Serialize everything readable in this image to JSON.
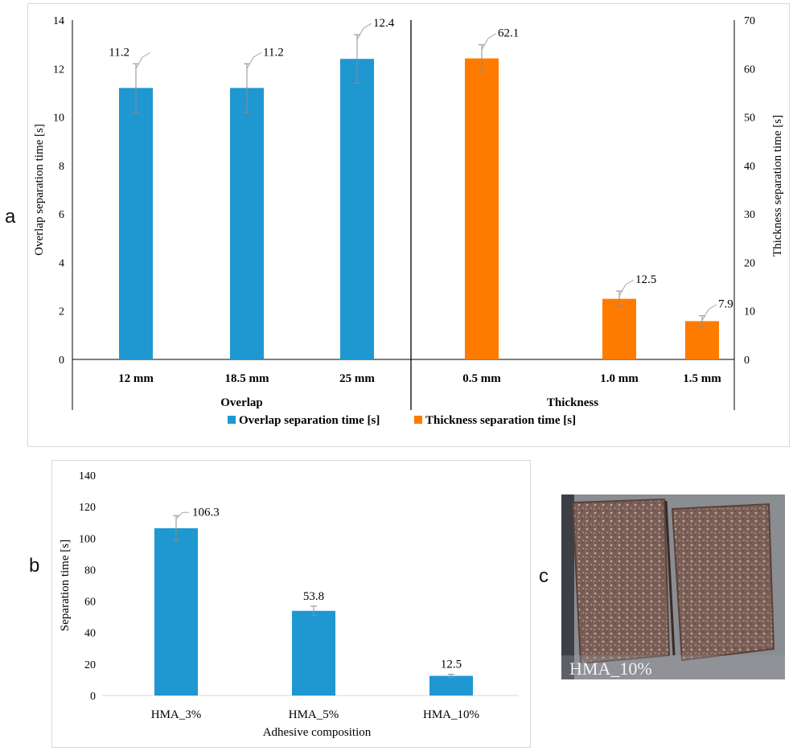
{
  "panel_labels": {
    "a": "a",
    "b": "b",
    "c": "c"
  },
  "colors": {
    "overlap": "#1f97d1",
    "thickness": "#ff7b00",
    "axis": "#000000",
    "error": "#8c8c8c"
  },
  "chart_data": [
    {
      "type": "bar",
      "panel": "a",
      "categories": [
        "12 mm",
        "18.5 mm",
        "25 mm",
        "0.5 mm",
        "1.0 mm",
        "1.5 mm"
      ],
      "groups": [
        "Overlap",
        "Thickness"
      ],
      "ylabel_left": "Overlap separation time [s]",
      "ylabel_right": "Thickness separation time [s]",
      "ylim_left": [
        0,
        14
      ],
      "ylim_right": [
        0,
        70
      ],
      "yticks_left": [
        "0",
        "2",
        "4",
        "6",
        "8",
        "10",
        "12",
        "14"
      ],
      "yticks_right": [
        "0",
        "10",
        "20",
        "30",
        "40",
        "50",
        "60",
        "70"
      ],
      "series": [
        {
          "name": "Overlap separation time [s]",
          "axis": "left",
          "values": [
            11.2,
            11.2,
            12.4,
            null,
            null,
            null
          ],
          "errors": [
            1.0,
            1.0,
            1.0,
            null,
            null,
            null
          ],
          "labels": [
            "11.2",
            "11.2",
            "12.4",
            "",
            "",
            ""
          ]
        },
        {
          "name": "Thickness separation time [s]",
          "axis": "right",
          "values": [
            null,
            null,
            null,
            62.1,
            12.5,
            7.9
          ],
          "errors": [
            null,
            null,
            null,
            2.8,
            1.6,
            1.1
          ],
          "labels": [
            "",
            "",
            "",
            "62.1",
            "12.5",
            "7.9"
          ]
        }
      ],
      "legend": "bottom",
      "grid": false
    },
    {
      "type": "bar",
      "panel": "b",
      "categories": [
        "HMA_3%",
        "HMA_5%",
        "HMA_10%"
      ],
      "values": [
        106.3,
        53.8,
        12.5
      ],
      "errors": [
        8.0,
        3.0,
        1.0
      ],
      "labels": [
        "106.3",
        "53.8",
        "12.5"
      ],
      "xlabel": "Adhesive composition",
      "ylabel": "Separation time [s]",
      "ylim": [
        0,
        140
      ],
      "yticks": [
        "0",
        "20",
        "40",
        "60",
        "80",
        "100",
        "120",
        "140"
      ],
      "grid": false
    }
  ],
  "photo": {
    "caption": "HMA_10%"
  }
}
